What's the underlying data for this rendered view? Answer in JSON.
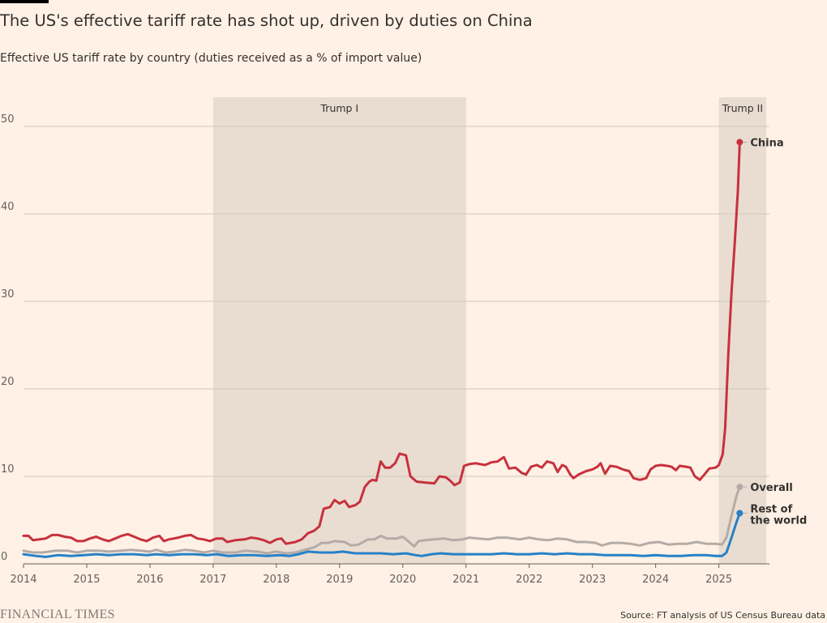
{
  "header": {
    "title": "The US's effective tariff rate has shot up, driven by duties on China",
    "subtitle": "Effective US tariff rate by country (duties received as a % of import value)"
  },
  "footer": {
    "logo": "FINANCIAL TIMES",
    "source": "Source: FT analysis of US Census Bureau data"
  },
  "chart_data": {
    "type": "line",
    "title": "The US's effective tariff rate has shot up, driven by duties on China",
    "subtitle": "Effective US tariff rate by country (duties received as a % of import value)",
    "xlabel": "",
    "ylabel": "",
    "xlim": [
      2014,
      2025.8
    ],
    "ylim": [
      0,
      53
    ],
    "x_ticks": [
      "2014",
      "2015",
      "2016",
      "2017",
      "2018",
      "2019",
      "2020",
      "2021",
      "2022",
      "2023",
      "2024",
      "2025"
    ],
    "y_ticks": [
      0,
      10,
      20,
      30,
      40,
      50
    ],
    "grid": true,
    "shaded_periods": [
      {
        "label": "Trump I",
        "start": 2017.0,
        "end": 2021.0
      },
      {
        "label": "Trump II",
        "start": 2025.0,
        "end": 2025.75
      }
    ],
    "colors": {
      "China": "#c7313d",
      "Overall": "#b5aba6",
      "Rest of the world": "#2681c8",
      "shade": "#e9ddd2",
      "background": "#fff1e5"
    },
    "series": [
      {
        "name": "China",
        "end_label": "China",
        "points": [
          [
            2014.0,
            3.2
          ],
          [
            2014.08,
            3.2
          ],
          [
            2014.15,
            2.7
          ],
          [
            2014.25,
            2.8
          ],
          [
            2014.35,
            2.9
          ],
          [
            2014.45,
            3.3
          ],
          [
            2014.55,
            3.3
          ],
          [
            2014.65,
            3.1
          ],
          [
            2014.75,
            3.0
          ],
          [
            2014.85,
            2.6
          ],
          [
            2014.95,
            2.6
          ],
          [
            2015.05,
            2.9
          ],
          [
            2015.15,
            3.1
          ],
          [
            2015.25,
            2.8
          ],
          [
            2015.35,
            2.6
          ],
          [
            2015.45,
            2.9
          ],
          [
            2015.55,
            3.2
          ],
          [
            2015.65,
            3.4
          ],
          [
            2015.75,
            3.1
          ],
          [
            2015.85,
            2.8
          ],
          [
            2015.95,
            2.6
          ],
          [
            2016.05,
            3.0
          ],
          [
            2016.15,
            3.2
          ],
          [
            2016.22,
            2.6
          ],
          [
            2016.3,
            2.8
          ],
          [
            2016.45,
            3.0
          ],
          [
            2016.55,
            3.2
          ],
          [
            2016.65,
            3.3
          ],
          [
            2016.75,
            2.9
          ],
          [
            2016.85,
            2.8
          ],
          [
            2016.95,
            2.6
          ],
          [
            2017.05,
            2.9
          ],
          [
            2017.15,
            2.9
          ],
          [
            2017.22,
            2.5
          ],
          [
            2017.35,
            2.7
          ],
          [
            2017.5,
            2.8
          ],
          [
            2017.6,
            3.0
          ],
          [
            2017.7,
            2.9
          ],
          [
            2017.8,
            2.7
          ],
          [
            2017.9,
            2.4
          ],
          [
            2018.0,
            2.8
          ],
          [
            2018.08,
            2.9
          ],
          [
            2018.15,
            2.3
          ],
          [
            2018.3,
            2.5
          ],
          [
            2018.4,
            2.8
          ],
          [
            2018.5,
            3.5
          ],
          [
            2018.6,
            3.8
          ],
          [
            2018.68,
            4.3
          ],
          [
            2018.75,
            6.3
          ],
          [
            2018.85,
            6.5
          ],
          [
            2018.92,
            7.3
          ],
          [
            2019.0,
            6.9
          ],
          [
            2019.08,
            7.2
          ],
          [
            2019.15,
            6.5
          ],
          [
            2019.25,
            6.7
          ],
          [
            2019.32,
            7.1
          ],
          [
            2019.4,
            8.8
          ],
          [
            2019.47,
            9.4
          ],
          [
            2019.52,
            9.6
          ],
          [
            2019.58,
            9.5
          ],
          [
            2019.65,
            11.7
          ],
          [
            2019.72,
            11.0
          ],
          [
            2019.8,
            11.0
          ],
          [
            2019.88,
            11.5
          ],
          [
            2019.95,
            12.6
          ],
          [
            2020.05,
            12.4
          ],
          [
            2020.12,
            10.0
          ],
          [
            2020.22,
            9.4
          ],
          [
            2020.35,
            9.3
          ],
          [
            2020.5,
            9.2
          ],
          [
            2020.58,
            10.0
          ],
          [
            2020.68,
            9.9
          ],
          [
            2020.75,
            9.5
          ],
          [
            2020.82,
            9.0
          ],
          [
            2020.9,
            9.3
          ],
          [
            2020.97,
            11.2
          ],
          [
            2021.05,
            11.4
          ],
          [
            2021.15,
            11.5
          ],
          [
            2021.3,
            11.3
          ],
          [
            2021.4,
            11.6
          ],
          [
            2021.5,
            11.7
          ],
          [
            2021.6,
            12.2
          ],
          [
            2021.68,
            10.9
          ],
          [
            2021.78,
            11.0
          ],
          [
            2021.88,
            10.4
          ],
          [
            2021.95,
            10.2
          ],
          [
            2022.03,
            11.1
          ],
          [
            2022.12,
            11.3
          ],
          [
            2022.2,
            11.0
          ],
          [
            2022.28,
            11.7
          ],
          [
            2022.38,
            11.5
          ],
          [
            2022.45,
            10.5
          ],
          [
            2022.52,
            11.3
          ],
          [
            2022.58,
            11.1
          ],
          [
            2022.65,
            10.2
          ],
          [
            2022.7,
            9.8
          ],
          [
            2022.78,
            10.2
          ],
          [
            2022.9,
            10.6
          ],
          [
            2023.0,
            10.8
          ],
          [
            2023.08,
            11.1
          ],
          [
            2023.13,
            11.5
          ],
          [
            2023.2,
            10.3
          ],
          [
            2023.28,
            11.2
          ],
          [
            2023.38,
            11.1
          ],
          [
            2023.48,
            10.8
          ],
          [
            2023.58,
            10.6
          ],
          [
            2023.65,
            9.8
          ],
          [
            2023.75,
            9.6
          ],
          [
            2023.85,
            9.8
          ],
          [
            2023.92,
            10.8
          ],
          [
            2024.0,
            11.2
          ],
          [
            2024.08,
            11.3
          ],
          [
            2024.18,
            11.2
          ],
          [
            2024.25,
            11.1
          ],
          [
            2024.32,
            10.7
          ],
          [
            2024.38,
            11.2
          ],
          [
            2024.48,
            11.1
          ],
          [
            2024.55,
            11.0
          ],
          [
            2024.62,
            10.0
          ],
          [
            2024.7,
            9.6
          ],
          [
            2024.78,
            10.3
          ],
          [
            2024.85,
            10.9
          ],
          [
            2024.95,
            11.0
          ],
          [
            2025.0,
            11.3
          ],
          [
            2025.06,
            12.5
          ],
          [
            2025.1,
            15.5
          ],
          [
            2025.15,
            24.0
          ],
          [
            2025.2,
            31.0
          ],
          [
            2025.25,
            36.5
          ],
          [
            2025.3,
            42.5
          ],
          [
            2025.33,
            48.2
          ]
        ]
      },
      {
        "name": "Overall",
        "end_label": "Overall",
        "points": [
          [
            2014.0,
            1.5
          ],
          [
            2014.15,
            1.3
          ],
          [
            2014.3,
            1.3
          ],
          [
            2014.5,
            1.5
          ],
          [
            2014.7,
            1.5
          ],
          [
            2014.85,
            1.3
          ],
          [
            2015.0,
            1.5
          ],
          [
            2015.2,
            1.5
          ],
          [
            2015.35,
            1.4
          ],
          [
            2015.55,
            1.5
          ],
          [
            2015.7,
            1.6
          ],
          [
            2015.85,
            1.5
          ],
          [
            2016.0,
            1.4
          ],
          [
            2016.1,
            1.6
          ],
          [
            2016.25,
            1.3
          ],
          [
            2016.4,
            1.4
          ],
          [
            2016.55,
            1.6
          ],
          [
            2016.7,
            1.5
          ],
          [
            2016.85,
            1.3
          ],
          [
            2017.0,
            1.5
          ],
          [
            2017.15,
            1.3
          ],
          [
            2017.35,
            1.3
          ],
          [
            2017.5,
            1.5
          ],
          [
            2017.7,
            1.4
          ],
          [
            2017.85,
            1.2
          ],
          [
            2018.0,
            1.4
          ],
          [
            2018.15,
            1.2
          ],
          [
            2018.3,
            1.3
          ],
          [
            2018.45,
            1.6
          ],
          [
            2018.6,
            1.9
          ],
          [
            2018.72,
            2.4
          ],
          [
            2018.82,
            2.4
          ],
          [
            2018.92,
            2.6
          ],
          [
            2019.08,
            2.5
          ],
          [
            2019.18,
            2.1
          ],
          [
            2019.3,
            2.2
          ],
          [
            2019.45,
            2.8
          ],
          [
            2019.55,
            2.8
          ],
          [
            2019.65,
            3.2
          ],
          [
            2019.75,
            2.9
          ],
          [
            2019.9,
            2.9
          ],
          [
            2020.0,
            3.1
          ],
          [
            2020.1,
            2.5
          ],
          [
            2020.18,
            2.0
          ],
          [
            2020.25,
            2.6
          ],
          [
            2020.35,
            2.7
          ],
          [
            2020.5,
            2.8
          ],
          [
            2020.65,
            2.9
          ],
          [
            2020.8,
            2.7
          ],
          [
            2020.95,
            2.8
          ],
          [
            2021.05,
            3.0
          ],
          [
            2021.2,
            2.9
          ],
          [
            2021.35,
            2.8
          ],
          [
            2021.5,
            3.0
          ],
          [
            2021.65,
            3.0
          ],
          [
            2021.85,
            2.8
          ],
          [
            2022.0,
            3.0
          ],
          [
            2022.15,
            2.8
          ],
          [
            2022.3,
            2.7
          ],
          [
            2022.45,
            2.9
          ],
          [
            2022.6,
            2.8
          ],
          [
            2022.75,
            2.5
          ],
          [
            2022.9,
            2.5
          ],
          [
            2023.05,
            2.4
          ],
          [
            2023.15,
            2.1
          ],
          [
            2023.3,
            2.4
          ],
          [
            2023.45,
            2.4
          ],
          [
            2023.6,
            2.3
          ],
          [
            2023.75,
            2.1
          ],
          [
            2023.9,
            2.4
          ],
          [
            2024.05,
            2.5
          ],
          [
            2024.2,
            2.2
          ],
          [
            2024.35,
            2.3
          ],
          [
            2024.5,
            2.3
          ],
          [
            2024.65,
            2.5
          ],
          [
            2024.8,
            2.3
          ],
          [
            2024.95,
            2.3
          ],
          [
            2025.05,
            2.2
          ],
          [
            2025.12,
            3.0
          ],
          [
            2025.2,
            5.5
          ],
          [
            2025.28,
            7.8
          ],
          [
            2025.33,
            8.8
          ]
        ]
      },
      {
        "name": "Rest of the world",
        "end_label": "Rest of the world",
        "points": [
          [
            2014.0,
            1.1
          ],
          [
            2014.2,
            0.9
          ],
          [
            2014.35,
            0.8
          ],
          [
            2014.55,
            1.0
          ],
          [
            2014.75,
            0.9
          ],
          [
            2014.95,
            1.0
          ],
          [
            2015.15,
            1.1
          ],
          [
            2015.35,
            1.0
          ],
          [
            2015.55,
            1.1
          ],
          [
            2015.75,
            1.1
          ],
          [
            2015.95,
            1.0
          ],
          [
            2016.1,
            1.1
          ],
          [
            2016.3,
            1.0
          ],
          [
            2016.5,
            1.1
          ],
          [
            2016.7,
            1.1
          ],
          [
            2016.9,
            1.0
          ],
          [
            2017.05,
            1.1
          ],
          [
            2017.25,
            0.9
          ],
          [
            2017.45,
            1.0
          ],
          [
            2017.65,
            1.0
          ],
          [
            2017.85,
            0.9
          ],
          [
            2018.05,
            1.0
          ],
          [
            2018.2,
            0.9
          ],
          [
            2018.35,
            1.1
          ],
          [
            2018.5,
            1.4
          ],
          [
            2018.7,
            1.3
          ],
          [
            2018.9,
            1.3
          ],
          [
            2019.05,
            1.4
          ],
          [
            2019.25,
            1.2
          ],
          [
            2019.45,
            1.2
          ],
          [
            2019.65,
            1.2
          ],
          [
            2019.85,
            1.1
          ],
          [
            2020.05,
            1.2
          ],
          [
            2020.2,
            1.0
          ],
          [
            2020.3,
            0.9
          ],
          [
            2020.45,
            1.1
          ],
          [
            2020.6,
            1.2
          ],
          [
            2020.8,
            1.1
          ],
          [
            2021.0,
            1.1
          ],
          [
            2021.2,
            1.1
          ],
          [
            2021.4,
            1.1
          ],
          [
            2021.6,
            1.2
          ],
          [
            2021.8,
            1.1
          ],
          [
            2022.0,
            1.1
          ],
          [
            2022.2,
            1.2
          ],
          [
            2022.4,
            1.1
          ],
          [
            2022.6,
            1.2
          ],
          [
            2022.8,
            1.1
          ],
          [
            2023.0,
            1.1
          ],
          [
            2023.2,
            1.0
          ],
          [
            2023.4,
            1.0
          ],
          [
            2023.6,
            1.0
          ],
          [
            2023.8,
            0.9
          ],
          [
            2024.0,
            1.0
          ],
          [
            2024.2,
            0.9
          ],
          [
            2024.4,
            0.9
          ],
          [
            2024.6,
            1.0
          ],
          [
            2024.8,
            1.0
          ],
          [
            2024.95,
            0.9
          ],
          [
            2025.05,
            0.9
          ],
          [
            2025.12,
            1.3
          ],
          [
            2025.2,
            3.0
          ],
          [
            2025.28,
            4.8
          ],
          [
            2025.33,
            5.8
          ]
        ]
      }
    ]
  }
}
